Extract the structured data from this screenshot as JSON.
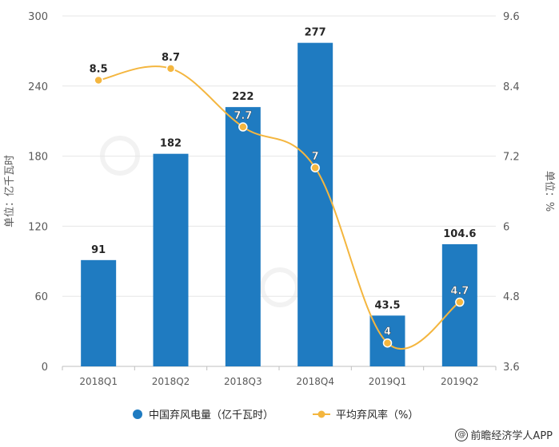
{
  "chart_data": {
    "type": "bar",
    "categories": [
      "2018Q1",
      "2018Q2",
      "2018Q3",
      "2018Q4",
      "2019Q1",
      "2019Q2"
    ],
    "series": [
      {
        "name": "中国弃风电量（亿千瓦时）",
        "type": "bar",
        "axis": "left",
        "values": [
          91,
          182,
          222,
          277,
          43.5,
          104.6
        ],
        "labels": [
          "91",
          "182",
          "222",
          "277",
          "43.5",
          "104.6"
        ]
      },
      {
        "name": "平均弃风率（%）",
        "type": "line",
        "axis": "right",
        "values": [
          8.5,
          8.7,
          7.7,
          7,
          4,
          4.7
        ],
        "labels": [
          "8.5",
          "8.7",
          "7.7",
          "7",
          "4",
          "4.7"
        ]
      }
    ],
    "ylabel": "单位：亿千瓦时",
    "y2label": "单位：%",
    "ylim": [
      0,
      300
    ],
    "y2lim": [
      3.6,
      9.6
    ],
    "yticks": [
      "0",
      "60",
      "120",
      "180",
      "240",
      "300"
    ],
    "y2ticks": [
      "3.6",
      "4.8",
      "6",
      "7.2",
      "8.4",
      "9.6"
    ],
    "grid": true,
    "legend": "bottom",
    "colors": {
      "bar": "#1f7bc1",
      "line": "#f4b63f"
    }
  },
  "footer": {
    "credit": "前瞻经济学人APP",
    "credit_icon": "@"
  }
}
